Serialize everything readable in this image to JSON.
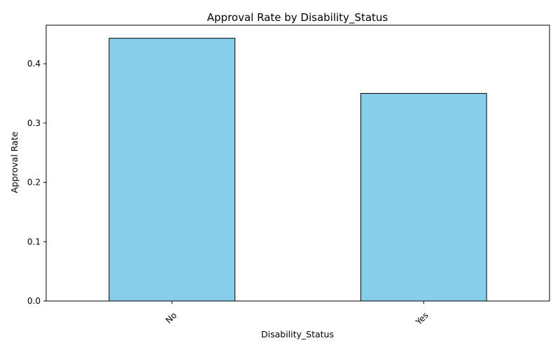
{
  "chart_data": {
    "type": "bar",
    "title": "Approval Rate by Disability_Status",
    "xlabel": "Disability_Status",
    "ylabel": "Approval Rate",
    "categories": [
      "No",
      "Yes"
    ],
    "values": [
      0.443,
      0.35
    ],
    "ylim": [
      0,
      0.465
    ],
    "yticks": [
      "0.0",
      "0.1",
      "0.2",
      "0.3",
      "0.4"
    ],
    "xtick_rotation_deg": 45,
    "grid": false,
    "legend": "none",
    "colors": {
      "bar_fill": "#87CEEB",
      "bar_edge": "#000000",
      "axis": "#000000",
      "background": "#ffffff"
    }
  }
}
